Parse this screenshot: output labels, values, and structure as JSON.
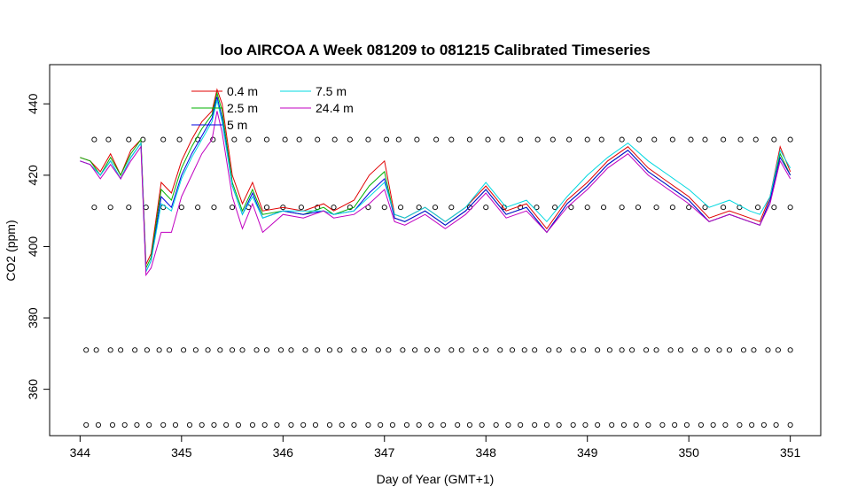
{
  "chart_data": {
    "type": "line",
    "title": "loo AIRCOA A  Week 081209 to 081215  Calibrated Timeseries",
    "xlabel": "Day of Year (GMT+1)",
    "ylabel": "CO2 (ppm)",
    "xlim": [
      343.7,
      351.3
    ],
    "ylim": [
      347,
      451
    ],
    "xticks": [
      344,
      345,
      346,
      347,
      348,
      349,
      350,
      351
    ],
    "yticks": [
      360,
      380,
      400,
      420,
      440
    ],
    "grid": false,
    "legend_position": "top-left",
    "x_shared": [
      344.0,
      344.1,
      344.2,
      344.3,
      344.4,
      344.5,
      344.6,
      344.65,
      344.7,
      344.8,
      344.9,
      345.0,
      345.1,
      345.2,
      345.3,
      345.35,
      345.4,
      345.5,
      345.6,
      345.7,
      345.8,
      346.0,
      346.2,
      346.4,
      346.5,
      346.7,
      346.85,
      347.0,
      347.1,
      347.2,
      347.4,
      347.6,
      347.8,
      348.0,
      348.2,
      348.4,
      348.6,
      348.8,
      349.0,
      349.2,
      349.4,
      349.6,
      349.8,
      350.0,
      350.2,
      350.4,
      350.6,
      350.7,
      350.8,
      350.9,
      351.0
    ],
    "series": [
      {
        "name": "0.4 m",
        "color": "#e00000",
        "values": [
          425,
          424,
          421,
          426,
          420,
          427,
          430,
          395,
          398,
          418,
          415,
          424,
          430,
          435,
          438,
          444,
          440,
          420,
          412,
          418,
          410,
          411,
          410,
          412,
          410,
          413,
          420,
          424,
          409,
          408,
          411,
          407,
          411,
          417,
          410,
          412,
          405,
          413,
          418,
          424,
          428,
          422,
          418,
          414,
          408,
          410,
          408,
          407,
          414,
          428,
          421
        ]
      },
      {
        "name": "2.5 m",
        "color": "#00b000",
        "values": [
          425,
          424,
          420,
          425,
          420,
          426,
          430,
          394,
          397,
          416,
          413,
          422,
          428,
          433,
          437,
          443,
          438,
          418,
          410,
          416,
          409,
          410,
          409,
          411,
          409,
          411,
          417,
          421,
          408,
          407,
          410,
          406,
          410,
          416,
          409,
          411,
          404,
          412,
          417,
          423,
          427,
          421,
          417,
          413,
          407,
          409,
          407,
          406,
          413,
          426,
          420
        ]
      },
      {
        "name": "5 m",
        "color": "#0000e0",
        "values": [
          424,
          423,
          420,
          424,
          419,
          425,
          429,
          393,
          396,
          414,
          411,
          420,
          426,
          431,
          436,
          442,
          436,
          417,
          409,
          415,
          408,
          410,
          409,
          410,
          409,
          410,
          415,
          419,
          408,
          407,
          410,
          406,
          410,
          416,
          409,
          411,
          404,
          412,
          417,
          423,
          427,
          421,
          417,
          413,
          407,
          409,
          407,
          406,
          413,
          425,
          420
        ]
      },
      {
        "name": "7.5 m",
        "color": "#00d8e0",
        "values": [
          424,
          423,
          420,
          424,
          419,
          425,
          429,
          393,
          396,
          412,
          410,
          419,
          425,
          430,
          435,
          441,
          435,
          417,
          409,
          414,
          408,
          410,
          410,
          410,
          409,
          410,
          414,
          418,
          409,
          408,
          411,
          407,
          411,
          418,
          411,
          413,
          407,
          414,
          420,
          425,
          429,
          424,
          420,
          416,
          411,
          413,
          410,
          409,
          414,
          427,
          422
        ]
      },
      {
        "name": "24.4 m",
        "color": "#c000c0",
        "values": [
          424,
          423,
          419,
          423,
          419,
          424,
          428,
          392,
          394,
          404,
          404,
          414,
          420,
          426,
          430,
          438,
          432,
          414,
          405,
          412,
          404,
          409,
          408,
          410,
          408,
          409,
          412,
          416,
          407,
          406,
          409,
          405,
          409,
          415,
          408,
          410,
          404,
          411,
          416,
          422,
          426,
          420,
          416,
          412,
          407,
          409,
          407,
          406,
          412,
          424,
          419
        ]
      }
    ],
    "marker_rows": [
      {
        "y": 430,
        "x": [
          344.14,
          344.28,
          344.48,
          344.62,
          344.82,
          344.98,
          345.16,
          345.31,
          345.52,
          345.66,
          345.84,
          346.02,
          346.16,
          346.34,
          346.51,
          346.66,
          346.84,
          347.02,
          347.14,
          347.32,
          347.51,
          347.66,
          347.84,
          348.02,
          348.16,
          348.34,
          348.51,
          348.66,
          348.82,
          349.0,
          349.14,
          349.34,
          349.51,
          349.66,
          349.84,
          350.02,
          350.16,
          350.34,
          350.51,
          350.66,
          350.84,
          351.0
        ]
      },
      {
        "y": 411,
        "x": [
          344.14,
          344.3,
          344.48,
          344.65,
          344.82,
          345.0,
          345.16,
          345.32,
          345.5,
          345.66,
          345.84,
          346.0,
          346.18,
          346.34,
          346.5,
          346.66,
          346.84,
          347.0,
          347.16,
          347.34,
          347.5,
          347.66,
          347.84,
          348.0,
          348.18,
          348.34,
          348.5,
          348.68,
          348.84,
          349.0,
          349.16,
          349.34,
          349.5,
          349.68,
          349.84,
          350.0,
          350.16,
          350.34,
          350.5,
          350.68,
          350.84,
          351.0
        ]
      },
      {
        "y": 371,
        "x": [
          344.06,
          344.16,
          344.3,
          344.4,
          344.54,
          344.66,
          344.78,
          344.88,
          345.02,
          345.14,
          345.26,
          345.38,
          345.5,
          345.6,
          345.74,
          345.84,
          345.98,
          346.08,
          346.22,
          346.34,
          346.46,
          346.56,
          346.7,
          346.8,
          346.94,
          347.04,
          347.18,
          347.3,
          347.42,
          347.52,
          347.66,
          347.76,
          347.9,
          348.0,
          348.14,
          348.26,
          348.38,
          348.48,
          348.62,
          348.72,
          348.86,
          348.96,
          349.1,
          349.22,
          349.34,
          349.44,
          349.58,
          349.68,
          349.82,
          349.92,
          350.06,
          350.18,
          350.3,
          350.4,
          350.54,
          350.64,
          350.78,
          350.88,
          351.0
        ]
      },
      {
        "y": 350,
        "x": [
          344.06,
          344.18,
          344.32,
          344.44,
          344.56,
          344.68,
          344.82,
          344.94,
          345.08,
          345.2,
          345.32,
          345.44,
          345.56,
          345.7,
          345.82,
          345.94,
          346.08,
          346.2,
          346.32,
          346.46,
          346.58,
          346.7,
          346.84,
          346.96,
          347.08,
          347.22,
          347.34,
          347.46,
          347.58,
          347.72,
          347.84,
          347.96,
          348.1,
          348.22,
          348.34,
          348.48,
          348.6,
          348.72,
          348.86,
          348.98,
          349.1,
          349.24,
          349.36,
          349.48,
          349.6,
          349.74,
          349.86,
          349.98,
          350.12,
          350.24,
          350.36,
          350.5,
          350.62,
          350.74,
          350.86,
          351.0
        ]
      }
    ]
  }
}
